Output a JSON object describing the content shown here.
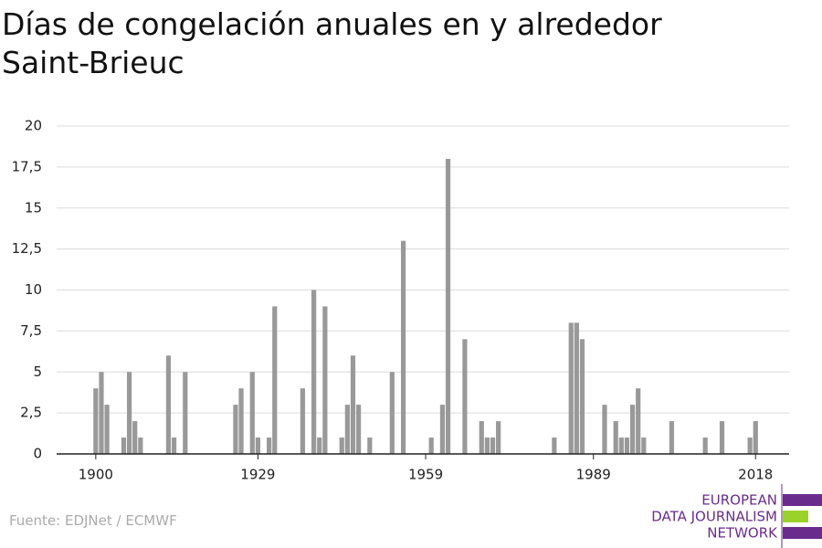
{
  "chart_data": {
    "type": "bar",
    "title": "Días de congelación anuales en y alrededor Saint-Brieuc",
    "source": "Fuente: EDJNet / ECMWF",
    "logo": [
      "EUROPEAN",
      "DATA JOURNALISM",
      "NETWORK"
    ],
    "color": "#999999",
    "x": [
      1900,
      1901,
      1902,
      1905,
      1906,
      1907,
      1908,
      1913,
      1914,
      1916,
      1925,
      1926,
      1928,
      1929,
      1931,
      1932,
      1937,
      1939,
      1940,
      1941,
      1944,
      1945,
      1946,
      1947,
      1949,
      1953,
      1955,
      1960,
      1962,
      1963,
      1966,
      1969,
      1970,
      1971,
      1972,
      1982,
      1985,
      1986,
      1987,
      1991,
      1993,
      1994,
      1995,
      1996,
      1997,
      1998,
      2003,
      2009,
      2012,
      2017,
      2018
    ],
    "values": [
      4,
      5,
      3,
      1,
      5,
      2,
      1,
      6,
      1,
      5,
      3,
      4,
      5,
      1,
      1,
      9,
      4,
      10,
      1,
      9,
      1,
      3,
      6,
      3,
      1,
      5,
      13,
      1,
      3,
      18,
      7,
      2,
      1,
      1,
      2,
      1,
      8,
      8,
      7,
      3,
      2,
      1,
      1,
      3,
      4,
      1,
      2,
      1,
      2,
      1,
      2
    ],
    "xlim": [
      1893,
      2024
    ],
    "xticks": [
      1900,
      1929,
      1959,
      1989,
      2018
    ],
    "ylim": [
      0,
      20
    ],
    "yticks": [
      0,
      {
        "value": 2.5,
        "label": "2,5"
      },
      5,
      {
        "value": 7.5,
        "label": "7,5"
      },
      10,
      {
        "value": 12.5,
        "label": "12,5"
      },
      15,
      {
        "value": 17.5,
        "label": "17,5"
      },
      20
    ],
    "grid": true
  }
}
